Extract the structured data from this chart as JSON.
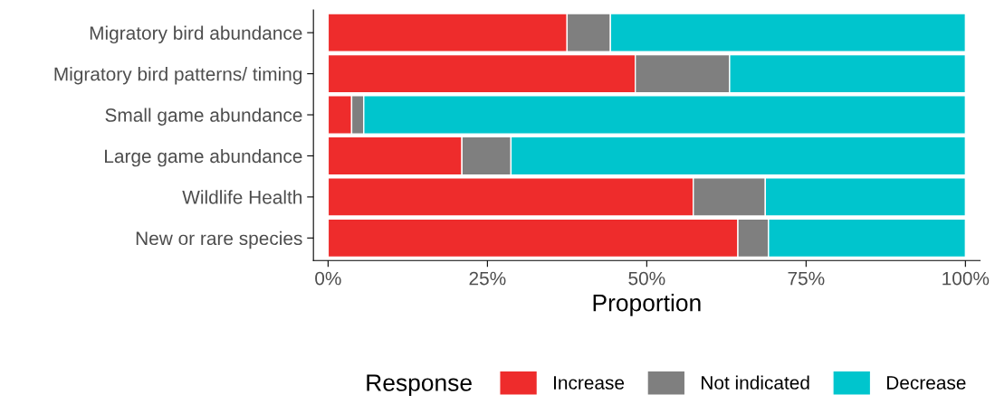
{
  "chart_data": {
    "type": "bar",
    "orientation": "horizontal",
    "stacked": true,
    "categories": [
      "Migratory bird abundance",
      "Migratory bird patterns/ timing",
      "Small game abundance",
      "Large game abundance",
      "Wildlife Health",
      "New or rare species"
    ],
    "series": [
      {
        "name": "Increase",
        "color": "#ee2c2c",
        "values": [
          37.5,
          48.2,
          3.7,
          21.0,
          57.3,
          64.3
        ]
      },
      {
        "name": "Not indicated",
        "color": "#7f7f7f",
        "values": [
          6.8,
          14.8,
          1.9,
          7.7,
          11.3,
          4.8
        ]
      },
      {
        "name": "Decrease",
        "color": "#00c5cd",
        "values": [
          55.7,
          37.0,
          94.4,
          71.3,
          31.4,
          30.9
        ]
      }
    ],
    "xlabel": "Proportion",
    "legend_title": "Response",
    "legend": "bottom",
    "xlim": [
      -2.3,
      102.3
    ],
    "xticks": [
      {
        "value": 0,
        "label": "0%"
      },
      {
        "value": 25,
        "label": "25%"
      },
      {
        "value": 50,
        "label": "50%"
      },
      {
        "value": 75,
        "label": "75%"
      },
      {
        "value": 100,
        "label": "100%"
      }
    ],
    "grid": false
  }
}
